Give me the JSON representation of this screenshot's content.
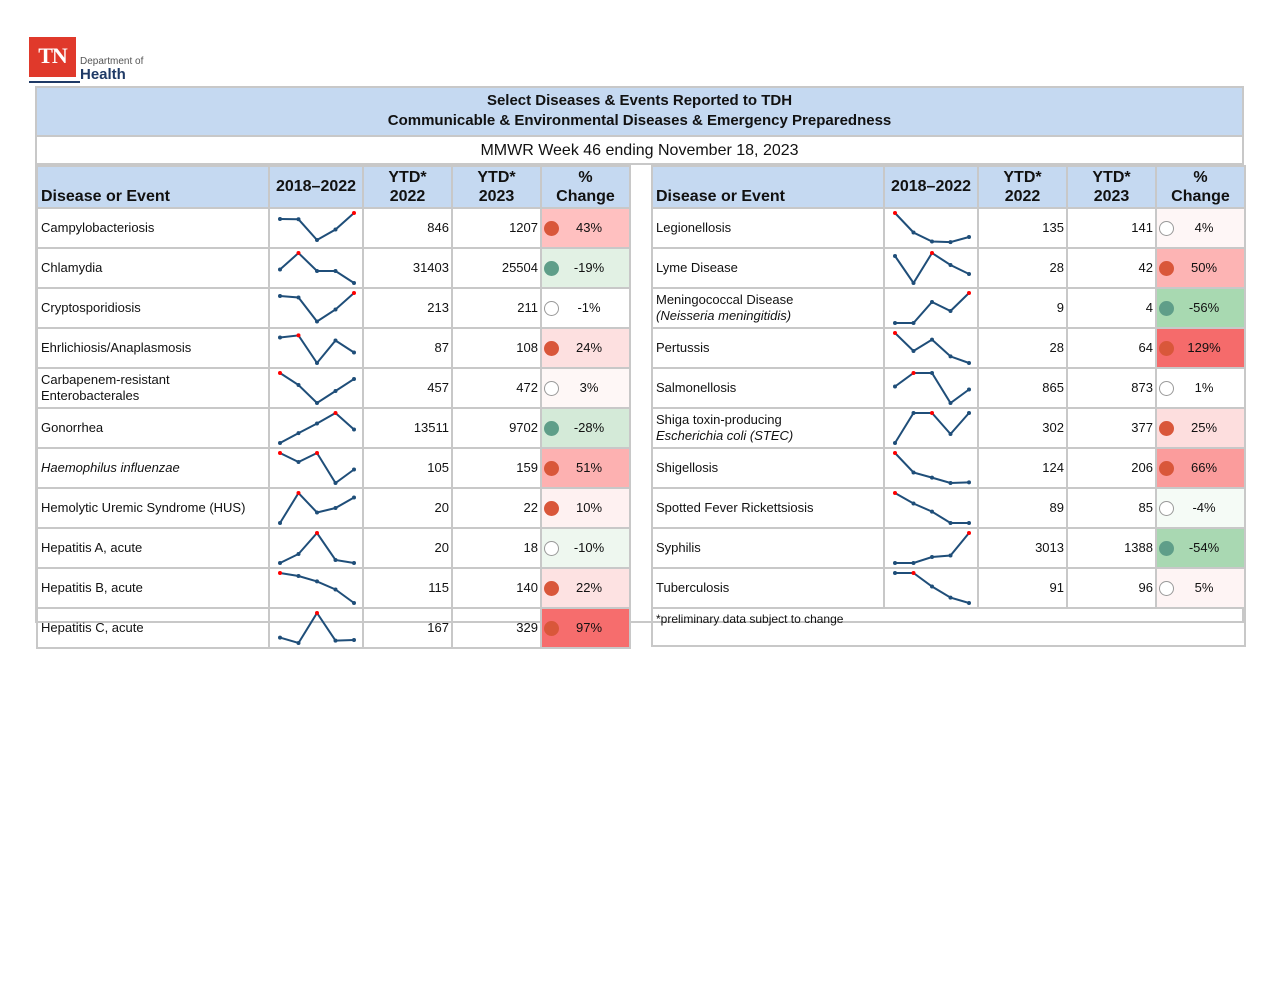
{
  "logo": {
    "abbr": "TN",
    "line1": "Department of",
    "line2": "Health"
  },
  "header": {
    "title_line1": "Select Diseases & Events Reported to TDH",
    "title_line2": "Communicable & Environmental Diseases & Emergency Preparedness",
    "subtitle": "MMWR Week 46 ending November 18, 2023"
  },
  "columns": {
    "name": "Disease or Event",
    "trend": "2018–2022",
    "ytd2022_a": "YTD*",
    "ytd2022_b": "2022",
    "ytd2023_a": "YTD*",
    "ytd2023_b": "2023",
    "change_a": "%",
    "change_b": "Change"
  },
  "colors": {
    "up_dot": "#d9573a",
    "down_dot": "#5f9e89",
    "sparkline": "#1f4e79",
    "high_point": "#ff0000",
    "header_bg": "#c5d9f1"
  },
  "left_rows": [
    {
      "name": "Campylobacteriosis",
      "name2": "",
      "italic": false,
      "ytd2022": "846",
      "ytd2023": "1207",
      "change": "43%",
      "dir": "up",
      "bg": "#ffc0c0",
      "spark": [
        0.8,
        0.79,
        0.1,
        0.45,
        1
      ],
      "high": [
        4
      ]
    },
    {
      "name": "Chlamydia",
      "name2": "",
      "italic": false,
      "ytd2022": "31403",
      "ytd2023": "25504",
      "change": "-19%",
      "dir": "down",
      "bg": "#e2f1e4",
      "spark": [
        0.45,
        1,
        0.4,
        0.4,
        0
      ],
      "high": [
        1
      ]
    },
    {
      "name": "Cryptosporidiosis",
      "name2": "",
      "italic": false,
      "ytd2022": "213",
      "ytd2023": "211",
      "change": "-1%",
      "dir": "none",
      "bg": "#ffffff",
      "spark": [
        0.9,
        0.85,
        0.05,
        0.45,
        1
      ],
      "high": [
        4
      ]
    },
    {
      "name": "Ehrlichiosis/Anaplasmosis",
      "name2": "",
      "italic": false,
      "ytd2022": "87",
      "ytd2023": "108",
      "change": "24%",
      "dir": "up",
      "bg": "#fde0e0",
      "spark": [
        0.85,
        0.92,
        0,
        0.75,
        0.35
      ],
      "high": [
        1
      ]
    },
    {
      "name": "Carbapenem-resistant",
      "name2": "Enterobacterales",
      "italic": false,
      "ytd2022": "457",
      "ytd2023": "472",
      "change": "3%",
      "dir": "none",
      "bg": "#fef7f6",
      "spark": [
        1,
        0.6,
        0,
        0.4,
        0.8
      ],
      "high": [
        0
      ]
    },
    {
      "name": "Gonorrhea",
      "name2": "",
      "italic": false,
      "ytd2022": "13511",
      "ytd2023": "9702",
      "change": "-28%",
      "dir": "down",
      "bg": "#d4ead8",
      "spark": [
        0,
        0.33,
        0.65,
        1,
        0.45
      ],
      "high": [
        3
      ]
    },
    {
      "name": "Haemophilus influenzae",
      "name2": "",
      "italic": true,
      "ytd2022": "105",
      "ytd2023": "159",
      "change": "51%",
      "dir": "up",
      "bg": "#fdb1b1",
      "spark": [
        1,
        0.7,
        1,
        0,
        0.45
      ],
      "high": [
        0,
        2
      ]
    },
    {
      "name": "Hemolytic Uremic Syndrome (HUS)",
      "name2": "",
      "italic": false,
      "ytd2022": "20",
      "ytd2023": "22",
      "change": "10%",
      "dir": "up",
      "bg": "#fef1f1",
      "spark": [
        0,
        1,
        0.35,
        0.5,
        0.85
      ],
      "high": [
        1
      ]
    },
    {
      "name": "Hepatitis A, acute",
      "name2": "",
      "italic": false,
      "ytd2022": "20",
      "ytd2023": "18",
      "change": "-10%",
      "dir": "none",
      "bg": "#eef7ef",
      "spark": [
        0,
        0.3,
        1,
        0.1,
        0
      ],
      "high": [
        2
      ]
    },
    {
      "name": "Hepatitis B, acute",
      "name2": "",
      "italic": false,
      "ytd2022": "115",
      "ytd2023": "140",
      "change": "22%",
      "dir": "up",
      "bg": "#fde2e2",
      "spark": [
        1,
        0.9,
        0.72,
        0.45,
        0
      ],
      "high": [
        0
      ]
    },
    {
      "name": "Hepatitis C, acute",
      "name2": "",
      "italic": false,
      "ytd2022": "167",
      "ytd2023": "329",
      "change": "97%",
      "dir": "up",
      "bg": "#f66d6d",
      "spark": [
        0.18,
        0,
        1,
        0.08,
        0.1
      ],
      "high": [
        2
      ]
    }
  ],
  "right_rows": [
    {
      "name": "Legionellosis",
      "name2": "",
      "italic": false,
      "ytd2022": "135",
      "ytd2023": "141",
      "change": "4%",
      "dir": "none",
      "bg": "#fef6f6",
      "spark": [
        1,
        0.35,
        0.05,
        0.03,
        0.2
      ],
      "high": [
        0
      ]
    },
    {
      "name": "Lyme Disease",
      "name2": "",
      "italic": false,
      "ytd2022": "28",
      "ytd2023": "42",
      "change": "50%",
      "dir": "up",
      "bg": "#fdb4b4",
      "spark": [
        0.9,
        0,
        1,
        0.6,
        0.3
      ],
      "high": [
        2
      ]
    },
    {
      "name": "Meningococcal Disease",
      "name2": "(Neisseria meningitidis)",
      "italic2": true,
      "italic": false,
      "ytd2022": "9",
      "ytd2023": "4",
      "change": "-56%",
      "dir": "down",
      "bg": "#a8d9b1",
      "spark": [
        0,
        0,
        0.7,
        0.4,
        1
      ],
      "high": [
        4
      ]
    },
    {
      "name": "Pertussis",
      "name2": "",
      "italic": false,
      "ytd2022": "28",
      "ytd2023": "64",
      "change": "129%",
      "dir": "up",
      "bg": "#f56b6b",
      "spark": [
        1,
        0.4,
        0.78,
        0.22,
        0
      ],
      "high": [
        0
      ]
    },
    {
      "name": "Salmonellosis",
      "name2": "",
      "italic": false,
      "ytd2022": "865",
      "ytd2023": "873",
      "change": "1%",
      "dir": "none",
      "bg": "#ffffff",
      "spark": [
        0.55,
        1,
        1,
        0,
        0.45
      ],
      "high": [
        1
      ]
    },
    {
      "name": "Shiga toxin-producing",
      "name2": "Escherichia coli (STEC)",
      "italic2": true,
      "italic": false,
      "ytd2022": "302",
      "ytd2023": "377",
      "change": "25%",
      "dir": "up",
      "bg": "#fddede",
      "spark": [
        0,
        1,
        1,
        0.3,
        1
      ],
      "high": [
        2
      ]
    },
    {
      "name": "Shigellosis",
      "name2": "",
      "italic": false,
      "ytd2022": "124",
      "ytd2023": "206",
      "change": "66%",
      "dir": "up",
      "bg": "#fb9c9c",
      "spark": [
        1,
        0.35,
        0.18,
        0,
        0.02
      ],
      "high": [
        0
      ]
    },
    {
      "name": "Spotted Fever Rickettsiosis",
      "name2": "",
      "italic": false,
      "ytd2022": "89",
      "ytd2023": "85",
      "change": "-4%",
      "dir": "none",
      "bg": "#f5fbf6",
      "spark": [
        1,
        0.65,
        0.38,
        0,
        0
      ],
      "high": [
        0
      ]
    },
    {
      "name": "Syphilis",
      "name2": "",
      "italic": false,
      "ytd2022": "3013",
      "ytd2023": "1388",
      "change": "-54%",
      "dir": "down",
      "bg": "#a9d8b2",
      "spark": [
        0,
        0,
        0.2,
        0.25,
        1
      ],
      "high": [
        4
      ]
    },
    {
      "name": "Tuberculosis",
      "name2": "",
      "italic": false,
      "ytd2022": "91",
      "ytd2023": "96",
      "change": "5%",
      "dir": "none",
      "bg": "#fef4f4",
      "spark": [
        1,
        1,
        0.55,
        0.18,
        0
      ],
      "high": [
        1
      ]
    }
  ],
  "footnote": "*preliminary data subject to change"
}
